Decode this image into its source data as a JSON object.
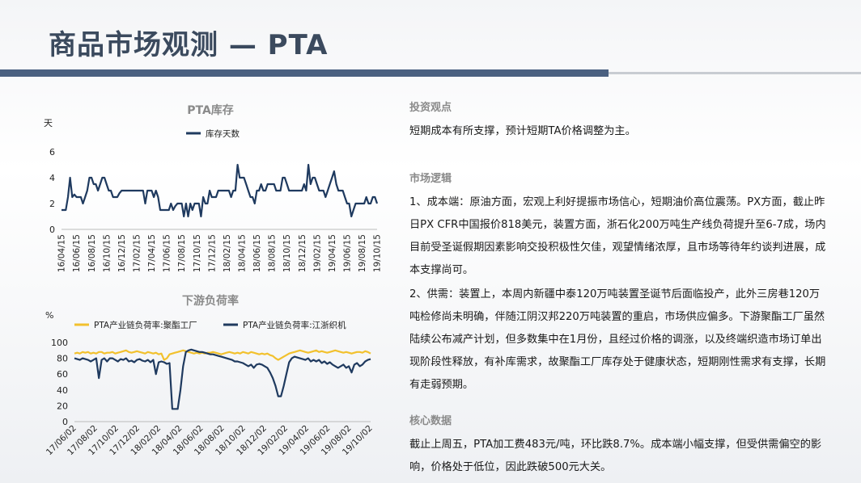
{
  "page": {
    "title": "商品市场观测 — PTA"
  },
  "sections": {
    "view": {
      "heading": "投资观点",
      "text": "短期成本有所支撑，预计短期TA价格调整为主。"
    },
    "logic": {
      "heading": "市场逻辑",
      "p1": "1、成本端：原油方面，宏观上利好提振市场信心，短期油价高位震荡。PX方面，截止昨日PX CFR中国报价818美元，装置方面，浙石化200万吨生产线负荷提升至6-7成，场内目前受圣诞假期因素影响交投积极性欠佳，观望情绪浓厚，且市场等待年约谈判进展，成本支撑尚可。",
      "p2": "2、供需：装置上，本周内新疆中泰120万吨装置圣诞节后面临投产，此外三房巷120万吨检修尚未明确，伴随江阴汉邦220万吨装置的重启，市场供应偏多。下游聚酯工厂虽然陆续公布减产计划，但多数集中在1月份，且经过价格的调涨，以及终端织造市场订单出现阶段性释放，有补库需求，故聚酯工厂库存处于健康状态，短期刚性需求有支撑，长期有走弱预期。"
    },
    "core": {
      "heading": "核心数据",
      "text": "截止上周五，PTA加工费483元/吨，环比跌8.7%。成本端小幅支撑，但受供需偏空的影响，价格处于低位，因此跌破500元大关。"
    }
  },
  "chart_data": [
    {
      "type": "line",
      "title": "PTA库存",
      "ylabel": "天",
      "ylim": [
        0,
        6
      ],
      "yticks": [
        0,
        2,
        4,
        6
      ],
      "xticks": [
        "16/04/15",
        "16/06/15",
        "16/08/15",
        "16/10/15",
        "16/12/15",
        "17/02/15",
        "17/04/15",
        "17/06/15",
        "17/08/15",
        "17/10/15",
        "17/12/15",
        "18/02/15",
        "18/04/15",
        "18/06/15",
        "18/08/15",
        "18/10/15",
        "18/12/15",
        "19/02/15",
        "19/04/15",
        "19/06/15",
        "19/08/15",
        "19/10/15"
      ],
      "legend_position": "top-left",
      "series": [
        {
          "name": "库存天数",
          "color": "#1f3a5f",
          "values": [
            1.5,
            1.5,
            1.5,
            2.5,
            4,
            2.5,
            2.7,
            2.5,
            2.5,
            2.5,
            2,
            2.5,
            3,
            4,
            4,
            3.5,
            3.5,
            3,
            3.5,
            4,
            4,
            3.5,
            3,
            3,
            2.5,
            2.5,
            2.5,
            2.8,
            3,
            3,
            3,
            3,
            3,
            3,
            3,
            3,
            3,
            3,
            3,
            2,
            3,
            3,
            3,
            2.5,
            3,
            2.5,
            1.5,
            1.5,
            1.5,
            1.5,
            1.5,
            2,
            1.5,
            1.8,
            2,
            2,
            2,
            1,
            2,
            1,
            2,
            1.5,
            2,
            2,
            2,
            1,
            2.5,
            2,
            2,
            3,
            2.5,
            2.5,
            2.5,
            3,
            3,
            3,
            3,
            3,
            3,
            2.5,
            3,
            3,
            5,
            4,
            4,
            4,
            3.5,
            3,
            2.5,
            2.5,
            2,
            3,
            3,
            3.5,
            3,
            3,
            3.5,
            3.5,
            3.5,
            3.5,
            3,
            3,
            3,
            4,
            4,
            3.5,
            3,
            3,
            3,
            3,
            3,
            3,
            3,
            3.5,
            3,
            5,
            3.5,
            4,
            4,
            3.5,
            3,
            3,
            3,
            2.5,
            3,
            3.5,
            4,
            4.5,
            3.5,
            3,
            3,
            3,
            2.5,
            2,
            2,
            1,
            1.5,
            2,
            2,
            2,
            2,
            2,
            2.5,
            2,
            2,
            2.5,
            2.5,
            2
          ]
        }
      ]
    },
    {
      "type": "line",
      "title": "下游负荷率",
      "ylabel": "%",
      "ylim": [
        0,
        100
      ],
      "yticks": [
        0,
        20,
        40,
        60,
        80,
        100
      ],
      "xticks": [
        "17/06/02",
        "17/08/02",
        "17/10/02",
        "17/12/02",
        "18/02/02",
        "18/04/02",
        "18/06/02",
        "18/08/02",
        "18/10/02",
        "18/12/02",
        "19/02/02",
        "19/04/02",
        "19/06/02",
        "19/08/02",
        "19/10/02"
      ],
      "legend_position": "top",
      "series": [
        {
          "name": "PTA产业链负荷率:聚酯工厂",
          "color": "#f2c12e",
          "values": [
            86,
            87,
            86,
            88,
            87,
            88,
            86,
            87,
            86,
            88,
            88,
            86,
            87,
            87,
            88,
            86,
            87,
            88,
            89,
            90,
            88,
            87,
            88,
            89,
            88,
            87,
            86,
            88,
            87,
            86,
            87,
            85,
            86,
            78,
            80,
            85,
            86,
            87,
            88,
            89,
            90,
            89,
            88,
            87,
            86,
            87,
            86,
            87,
            86,
            87,
            87,
            88,
            87,
            86,
            85,
            86,
            87,
            88,
            87,
            86,
            87,
            86,
            88,
            87,
            86,
            88,
            87,
            86,
            85,
            86,
            85,
            86,
            84,
            83,
            80,
            78,
            80,
            82,
            84,
            86,
            87,
            88,
            89,
            90,
            89,
            88,
            87,
            88,
            89,
            90,
            88,
            89,
            88,
            87,
            88,
            89,
            90,
            89,
            88,
            87,
            88,
            87,
            86,
            87,
            88,
            88,
            87,
            89,
            88,
            86
          ]
        },
        {
          "name": "PTA产业链负荷率:江浙织机",
          "color": "#1f3a5f",
          "values": [
            80,
            79,
            78,
            80,
            79,
            78,
            76,
            78,
            80,
            55,
            78,
            80,
            76,
            80,
            80,
            78,
            76,
            79,
            78,
            80,
            76,
            77,
            75,
            78,
            79,
            77,
            76,
            78,
            75,
            78,
            60,
            75,
            76,
            75,
            73,
            74,
            16,
            16,
            16,
            40,
            70,
            88,
            90,
            91,
            90,
            89,
            88,
            88,
            87,
            86,
            85,
            85,
            84,
            83,
            82,
            81,
            80,
            79,
            78,
            76,
            76,
            75,
            74,
            72,
            70,
            72,
            68,
            72,
            73,
            72,
            70,
            68,
            62,
            55,
            45,
            32,
            32,
            45,
            60,
            75,
            80,
            82,
            81,
            80,
            79,
            78,
            80,
            76,
            78,
            76,
            78,
            74,
            76,
            73,
            75,
            72,
            70,
            68,
            70,
            72,
            68,
            70,
            62,
            72,
            74,
            70,
            72,
            76,
            78,
            79
          ]
        }
      ]
    }
  ]
}
